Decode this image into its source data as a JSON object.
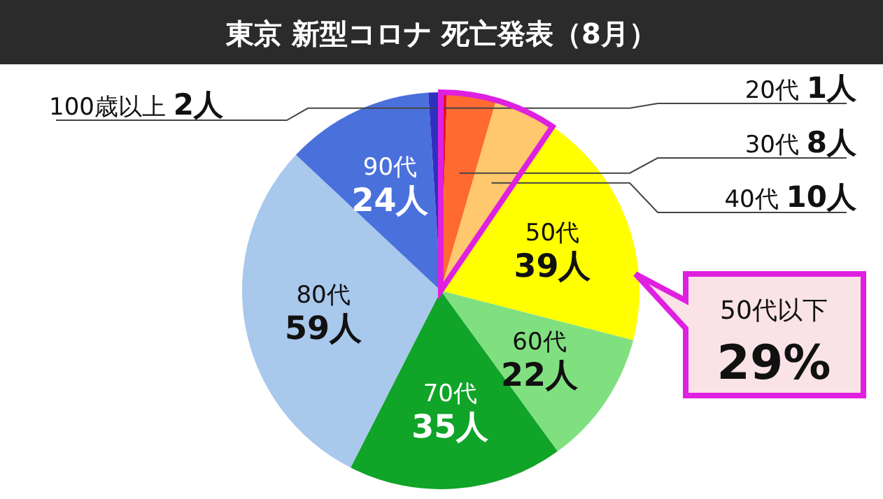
{
  "chart_data": {
    "type": "pie",
    "title": "東京 新型コロナ 死亡発表（8月）",
    "categories": [
      "20代",
      "30代",
      "40代",
      "50代",
      "60代",
      "70代",
      "80代",
      "90代",
      "100歳以上"
    ],
    "values": [
      1,
      8,
      10,
      39,
      22,
      35,
      59,
      24,
      2
    ],
    "value_labels": [
      "1人",
      "8人",
      "10人",
      "39人",
      "22人",
      "35人",
      "59人",
      "24人",
      "2人"
    ],
    "colors": [
      "#e8102a",
      "#ff6a30",
      "#ffc86e",
      "#ffff00",
      "#80e080",
      "#10a428",
      "#a8c8ec",
      "#4a70dc",
      "#3030c0"
    ],
    "annotations": [
      "50代以下",
      "29%"
    ]
  }
}
